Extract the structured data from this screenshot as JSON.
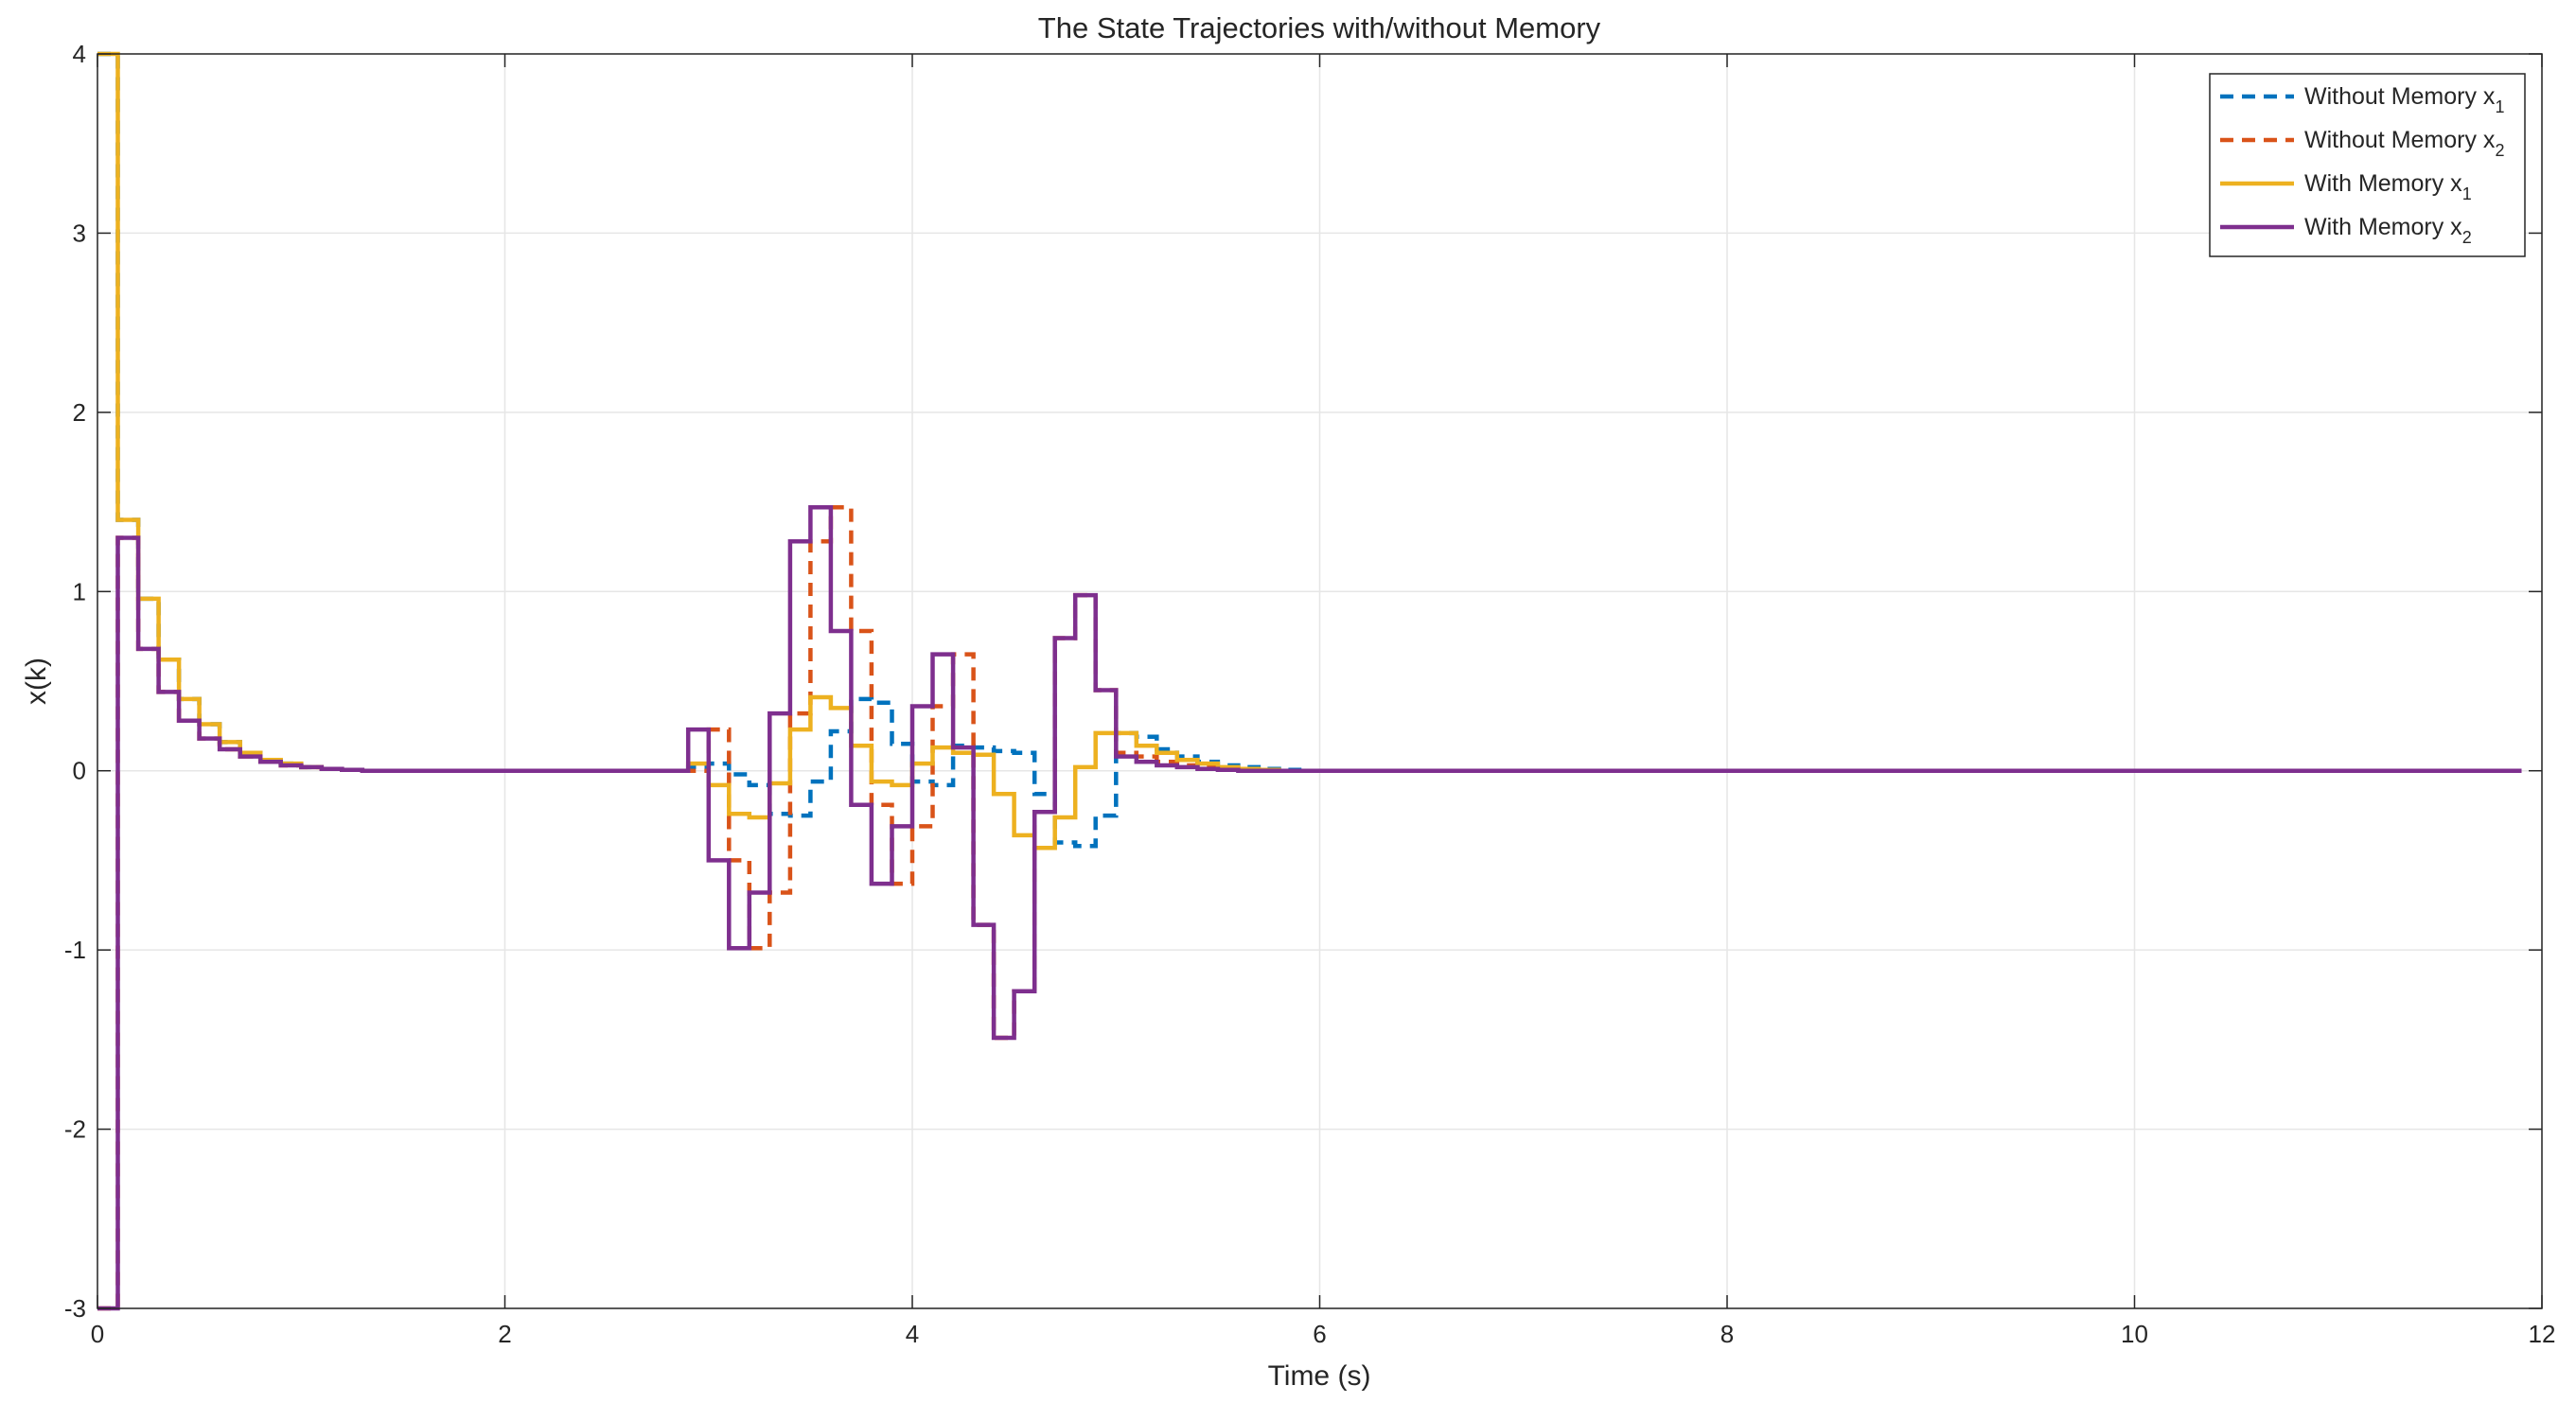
{
  "chart_data": {
    "type": "line",
    "step": true,
    "title": "The State Trajectories with/without Memory",
    "xlabel": "Time (s)",
    "ylabel": "x(k)",
    "xlim": [
      0,
      12
    ],
    "ylim": [
      -3,
      4
    ],
    "xticks": [
      0,
      2,
      4,
      6,
      8,
      10,
      12
    ],
    "yticks": [
      -3,
      -2,
      -1,
      0,
      1,
      2,
      3,
      4
    ],
    "xtick_labels": [
      "0",
      "2",
      "4",
      "6",
      "8",
      "10",
      "12"
    ],
    "ytick_labels": [
      "-3",
      "-2",
      "-1",
      "0",
      "1",
      "2",
      "3",
      "4"
    ],
    "grid": true,
    "box": true,
    "legend_position": "top-right",
    "sample_time": 0.1,
    "series": [
      {
        "name": "Without Memory x1",
        "legend_main": "Without Memory x",
        "legend_sub": "1",
        "color": "#0072BD",
        "style": "dashed",
        "x": [
          0,
          0.1,
          0.2,
          0.3,
          0.4,
          0.5,
          0.6,
          0.7,
          0.8,
          0.9,
          1.0,
          1.1,
          1.2,
          1.3,
          1.4,
          1.5,
          1.6,
          1.7,
          1.8,
          1.9,
          2.0,
          2.1,
          2.2,
          2.3,
          2.4,
          2.5,
          2.6,
          2.7,
          2.8,
          2.9,
          3.0,
          3.1,
          3.2,
          3.3,
          3.4,
          3.5,
          3.6,
          3.7,
          3.8,
          3.9,
          4.0,
          4.1,
          4.2,
          4.3,
          4.4,
          4.5,
          4.6,
          4.7,
          4.8,
          4.9,
          5.0,
          5.1,
          5.2,
          5.3,
          5.4,
          5.5,
          5.6,
          5.7,
          5.8,
          5.9,
          6.0,
          6.9
        ],
        "y": [
          4,
          1.4,
          0.96,
          0.62,
          0.4,
          0.26,
          0.16,
          0.1,
          0.06,
          0.04,
          0.02,
          0.01,
          0.005,
          0,
          0,
          0,
          0,
          0,
          0,
          0,
          0,
          0,
          0,
          0,
          0,
          0,
          0,
          0,
          0,
          0.02,
          0.04,
          -0.02,
          -0.08,
          -0.24,
          -0.25,
          -0.06,
          0.22,
          0.4,
          0.38,
          0.15,
          -0.06,
          -0.08,
          0.14,
          0.13,
          0.11,
          0.1,
          -0.13,
          -0.4,
          -0.42,
          -0.25,
          0.21,
          0.19,
          0.12,
          0.08,
          0.05,
          0.03,
          0.02,
          0.01,
          0.005,
          0,
          0,
          0
        ]
      },
      {
        "name": "Without Memory x2",
        "legend_main": "Without Memory x",
        "legend_sub": "2",
        "color": "#D95319",
        "style": "dashed",
        "x": [
          0,
          0.1,
          0.2,
          0.3,
          0.4,
          0.5,
          0.6,
          0.7,
          0.8,
          0.9,
          1.0,
          1.1,
          1.2,
          1.3,
          1.4,
          1.5,
          1.6,
          1.7,
          1.8,
          1.9,
          2.0,
          2.1,
          2.2,
          2.3,
          2.4,
          2.5,
          2.6,
          2.7,
          2.8,
          2.9,
          3.0,
          3.1,
          3.2,
          3.3,
          3.4,
          3.5,
          3.6,
          3.7,
          3.8,
          3.9,
          4.0,
          4.1,
          4.2,
          4.3,
          4.4,
          4.5,
          4.6,
          4.7,
          4.8,
          4.9,
          5.0,
          5.1,
          5.2,
          5.3,
          5.4,
          5.5,
          5.6,
          5.7,
          5.8,
          5.9,
          6.0,
          6.9
        ],
        "y": [
          -3,
          1.3,
          0.68,
          0.44,
          0.28,
          0.18,
          0.12,
          0.08,
          0.05,
          0.03,
          0.02,
          0.01,
          0.005,
          0,
          0,
          0,
          0,
          0,
          0,
          0,
          0,
          0,
          0,
          0,
          0,
          0,
          0,
          0,
          0,
          0,
          0.23,
          -0.5,
          -0.99,
          -0.68,
          0.32,
          1.28,
          1.47,
          0.78,
          -0.19,
          -0.63,
          -0.31,
          0.36,
          0.65,
          -0.86,
          -1.49,
          -1.23,
          -0.23,
          0.74,
          0.98,
          0.45,
          0.1,
          0.08,
          0.05,
          0.03,
          0.02,
          0.01,
          0.005,
          0,
          0,
          0,
          0,
          0
        ]
      },
      {
        "name": "With Memory x1",
        "legend_main": "With Memory x",
        "legend_sub": "1",
        "color": "#EDB120",
        "style": "solid",
        "x": [
          0,
          0.1,
          0.2,
          0.3,
          0.4,
          0.5,
          0.6,
          0.7,
          0.8,
          0.9,
          1.0,
          1.1,
          1.2,
          1.3,
          1.4,
          1.5,
          1.6,
          1.7,
          1.8,
          1.9,
          2.0,
          2.1,
          2.2,
          2.3,
          2.4,
          2.5,
          2.6,
          2.7,
          2.8,
          2.9,
          3.0,
          3.1,
          3.2,
          3.3,
          3.4,
          3.5,
          3.6,
          3.7,
          3.8,
          3.9,
          4.0,
          4.1,
          4.2,
          4.3,
          4.4,
          4.5,
          4.6,
          4.7,
          4.8,
          4.9,
          5.0,
          5.1,
          5.2,
          5.3,
          5.4,
          5.5,
          5.6,
          5.7,
          5.8,
          5.9,
          6.0,
          11.9
        ],
        "y": [
          4,
          1.4,
          0.96,
          0.62,
          0.4,
          0.26,
          0.16,
          0.1,
          0.06,
          0.04,
          0.02,
          0.01,
          0.005,
          0,
          0,
          0,
          0,
          0,
          0,
          0,
          0,
          0,
          0,
          0,
          0,
          0,
          0,
          0,
          0,
          0.04,
          -0.08,
          -0.24,
          -0.26,
          -0.07,
          0.23,
          0.41,
          0.35,
          0.14,
          -0.06,
          -0.08,
          0.04,
          0.13,
          0.1,
          0.09,
          -0.13,
          -0.36,
          -0.43,
          -0.26,
          0.02,
          0.21,
          0.21,
          0.14,
          0.1,
          0.06,
          0.04,
          0.02,
          0.01,
          0.005,
          0,
          0,
          0,
          0
        ]
      },
      {
        "name": "With Memory x2",
        "legend_main": "With Memory x",
        "legend_sub": "2",
        "color": "#7E2F8E",
        "style": "solid",
        "x": [
          0,
          0.1,
          0.2,
          0.3,
          0.4,
          0.5,
          0.6,
          0.7,
          0.8,
          0.9,
          1.0,
          1.1,
          1.2,
          1.3,
          1.4,
          1.5,
          1.6,
          1.7,
          1.8,
          1.9,
          2.0,
          2.1,
          2.2,
          2.3,
          2.4,
          2.5,
          2.6,
          2.7,
          2.8,
          2.9,
          3.0,
          3.1,
          3.2,
          3.3,
          3.4,
          3.5,
          3.6,
          3.7,
          3.8,
          3.9,
          4.0,
          4.1,
          4.2,
          4.3,
          4.4,
          4.5,
          4.6,
          4.7,
          4.8,
          4.9,
          5.0,
          5.1,
          5.2,
          5.3,
          5.4,
          5.5,
          5.6,
          5.7,
          5.8,
          5.9,
          6.0,
          11.9
        ],
        "y": [
          -3,
          1.3,
          0.68,
          0.44,
          0.28,
          0.18,
          0.12,
          0.08,
          0.05,
          0.03,
          0.02,
          0.01,
          0.005,
          0,
          0,
          0,
          0,
          0,
          0,
          0,
          0,
          0,
          0,
          0,
          0,
          0,
          0,
          0,
          0,
          0.23,
          -0.5,
          -0.99,
          -0.68,
          0.32,
          1.28,
          1.47,
          0.78,
          -0.19,
          -0.63,
          -0.31,
          0.36,
          0.65,
          0.13,
          -0.86,
          -1.49,
          -1.23,
          -0.23,
          0.74,
          0.98,
          0.45,
          0.08,
          0.05,
          0.03,
          0.02,
          0.01,
          0.005,
          0,
          0,
          0,
          0,
          0,
          0
        ]
      }
    ]
  }
}
